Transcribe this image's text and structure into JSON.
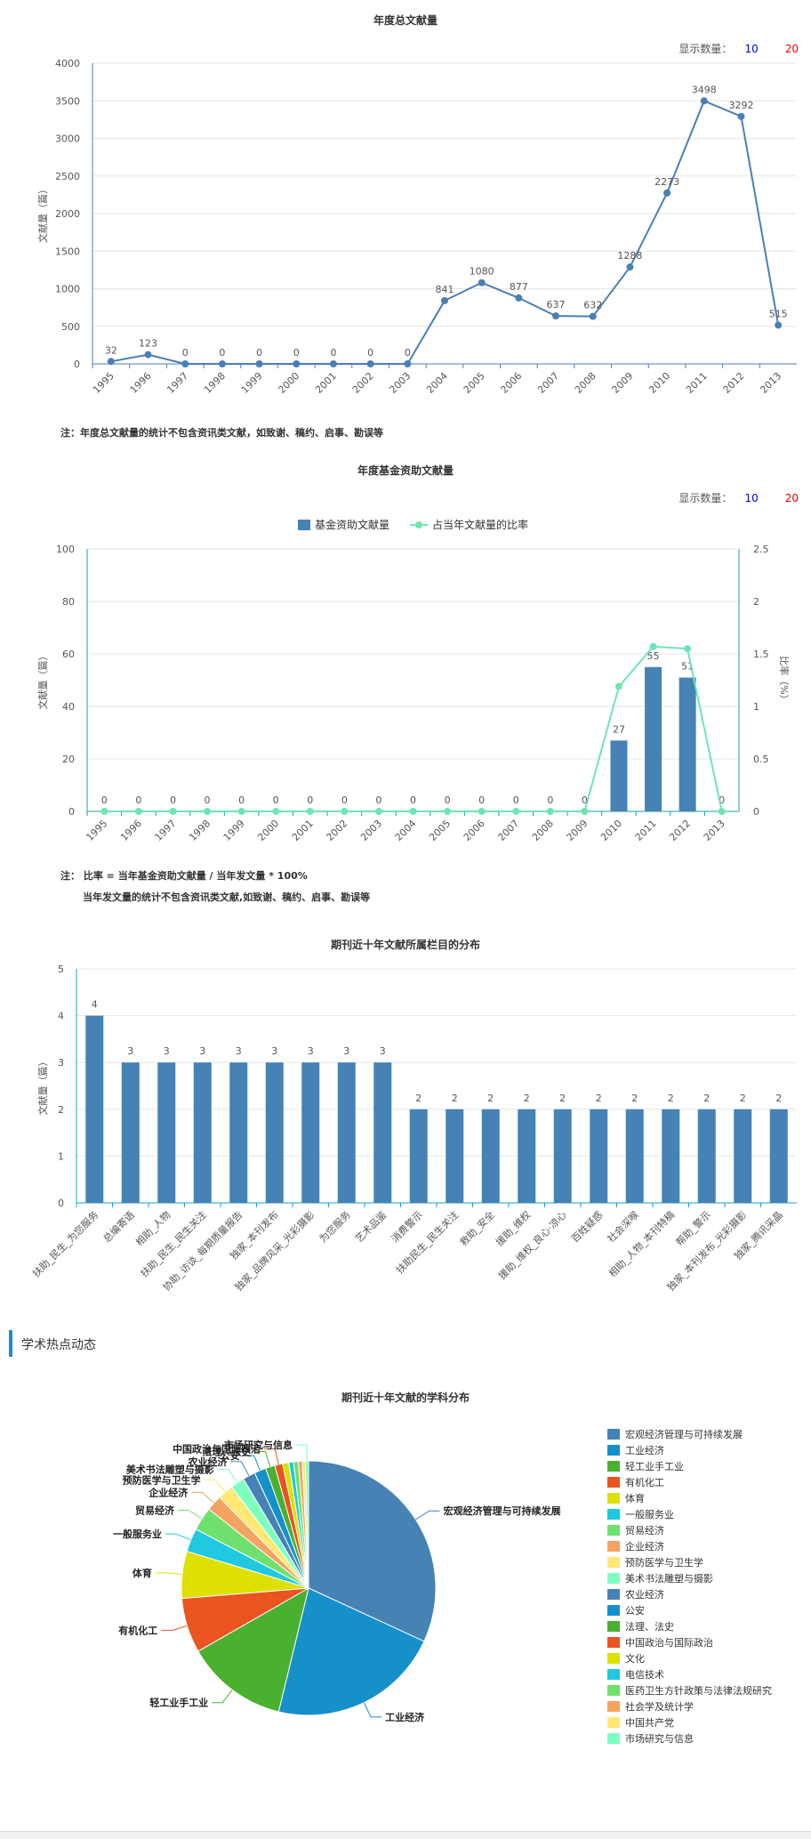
{
  "chart1": {
    "title": "年度总文献量",
    "display_count_label": "显示数量：",
    "opt10": "10",
    "opt20": "20",
    "note": "注：年度总文献量的统计不包含资讯类文献，如致谢、稿约、启事、勘误等"
  },
  "chart2": {
    "title": "年度基金资助文献量",
    "display_count_label": "显示数量：",
    "opt10": "10",
    "opt20": "20",
    "note1": "注： 比率 = 当年基金资助文献量 / 当年发文量 * 100%",
    "note2": "当年发文量的统计不包含资讯类文献,如致谢、稿约、启事、勘误等"
  },
  "chart3": {
    "title": "期刊近十年文献所属栏目的分布"
  },
  "section": {
    "title": "学术热点动态"
  },
  "chart4": {
    "title": "期刊近十年文献的学科分布"
  },
  "chart_data": [
    {
      "type": "line",
      "title": "年度总文献量",
      "ylabel": "文献量（篇）",
      "xlabel": "",
      "x": [
        "1995",
        "1996",
        "1997",
        "1998",
        "1999",
        "2000",
        "2001",
        "2002",
        "2003",
        "2004",
        "2005",
        "2006",
        "2007",
        "2008",
        "2009",
        "2010",
        "2011",
        "2012",
        "2013"
      ],
      "series": [
        {
          "values": [
            32,
            123,
            0,
            0,
            0,
            0,
            0,
            0,
            0,
            841,
            1080,
            877,
            637,
            632,
            1288,
            2273,
            3498,
            3292,
            515
          ]
        }
      ],
      "ylim": [
        0,
        4000
      ],
      "yticks": [
        0,
        500,
        1000,
        1500,
        2000,
        2500,
        3000,
        3500,
        4000
      ],
      "color": "#4a7fb5",
      "grid": true
    },
    {
      "type": "bar",
      "title": "年度基金资助文献量",
      "ylabel": "文献量（篇）",
      "y2label": "比率（%）",
      "x": [
        "1995",
        "1996",
        "1997",
        "1998",
        "1999",
        "2000",
        "2001",
        "2002",
        "2003",
        "2004",
        "2005",
        "2006",
        "2007",
        "2008",
        "2009",
        "2010",
        "2011",
        "2012",
        "2013"
      ],
      "series": [
        {
          "name": "基金资助文献量",
          "type": "bar",
          "values": [
            0,
            0,
            0,
            0,
            0,
            0,
            0,
            0,
            0,
            0,
            0,
            0,
            0,
            0,
            0,
            27,
            55,
            51,
            0
          ],
          "color": "#4682b4"
        },
        {
          "name": "占当年文献量的比率",
          "type": "line",
          "values": [
            0,
            0,
            0,
            0,
            0,
            0,
            0,
            0,
            0,
            0,
            0,
            0,
            0,
            0,
            0,
            1.19,
            1.57,
            1.55,
            0
          ],
          "color": "#6ee6b4"
        }
      ],
      "ylim": [
        0,
        100
      ],
      "yticks": [
        0,
        20,
        40,
        60,
        80,
        100
      ],
      "y2lim": [
        0,
        2.5
      ],
      "y2ticks": [
        0,
        0.5,
        1,
        1.5,
        2,
        2.5
      ],
      "legend": "top-center",
      "grid": true
    },
    {
      "type": "bar",
      "title": "期刊近十年文献所属栏目的分布",
      "ylabel": "文献量（篇）",
      "categories": [
        "扶助_民生_为您服务",
        "总编寄语",
        "相助_人物",
        "扶助_民生_民生关注",
        "协助_访谈_每期质量报告",
        "独家_本刊发布",
        "独家_品牌风采_光彩摄影",
        "为您服务",
        "艺术品鉴",
        "消费警示",
        "扶助民生_民生关注",
        "救助_安全",
        "援助_维权",
        "援助_维权_良心·凉心",
        "百姓疑惑",
        "社会深喉",
        "相助_人物_本刊特稿",
        "帮助_警示",
        "独家_本刊发布_光彩摄影",
        "独家_腾讯采晶"
      ],
      "values": [
        4,
        3,
        3,
        3,
        3,
        3,
        3,
        3,
        3,
        2,
        2,
        2,
        2,
        2,
        2,
        2,
        2,
        2,
        2,
        2
      ],
      "ylim": [
        0,
        5
      ],
      "yticks": [
        0,
        1,
        2,
        3,
        4,
        5
      ],
      "color": "#4682b4",
      "grid": true
    },
    {
      "type": "pie",
      "title": "期刊近十年文献的学科分布",
      "legend": "right",
      "slices": [
        {
          "label": "宏观经济管理与可持续发展",
          "value": 32.0,
          "color": "#4682b4",
          "callout": "宏观经济管理与可持续发展"
        },
        {
          "label": "工业经济",
          "value": 22.0,
          "color": "#1690c8",
          "callout": "工业经济"
        },
        {
          "label": "轻工业手工业",
          "value": 13.0,
          "color": "#4ab030",
          "callout": "轻工业手工业"
        },
        {
          "label": "有机化工",
          "value": 7.0,
          "color": "#e95420",
          "callout": "有机化工"
        },
        {
          "label": "体育",
          "value": 6.0,
          "color": "#dde000",
          "callout": "体育"
        },
        {
          "label": "一般服务业",
          "value": 3.0,
          "color": "#20c8e0",
          "callout": "一般服务业"
        },
        {
          "label": "贸易经济",
          "value": 3.0,
          "color": "#6ee06e",
          "callout": "贸易经济"
        },
        {
          "label": "企业经济",
          "value": 2.0,
          "color": "#f4a460",
          "callout": "企业经济"
        },
        {
          "label": "预防医学与卫生学",
          "value": 2.0,
          "color": "#ffe873",
          "callout": "预防医学与卫生学"
        },
        {
          "label": "美术书法雕塑与摄影",
          "value": 1.8,
          "color": "#7fffbf",
          "callout": "美术书法雕塑与摄影"
        },
        {
          "label": "农业经济",
          "value": 1.6,
          "color": "#4682b4",
          "callout": "农业经济"
        },
        {
          "label": "公安",
          "value": 1.5,
          "color": "#1690c8",
          "callout": "公安"
        },
        {
          "label": "法理、法史",
          "value": 1.2,
          "color": "#4ab030",
          "callout": "法理、法史"
        },
        {
          "label": "中国政治与国际政治",
          "value": 1.0,
          "color": "#e95420",
          "callout": "中国政治与国际政治"
        },
        {
          "label": "文化",
          "value": 0.8,
          "color": "#dde000",
          "callout": ""
        },
        {
          "label": "电信技术",
          "value": 0.6,
          "color": "#20c8e0",
          "callout": ""
        },
        {
          "label": "医药卫生方针政策与法律法规研究",
          "value": 0.6,
          "color": "#6ee06e",
          "callout": ""
        },
        {
          "label": "社会学及统计学",
          "value": 0.5,
          "color": "#f4a460",
          "callout": ""
        },
        {
          "label": "中国共产党",
          "value": 0.4,
          "color": "#ffe873",
          "callout": ""
        },
        {
          "label": "市场研究与信息",
          "value": 0.4,
          "color": "#7fffbf",
          "callout": "市场研究与信息"
        }
      ]
    }
  ]
}
